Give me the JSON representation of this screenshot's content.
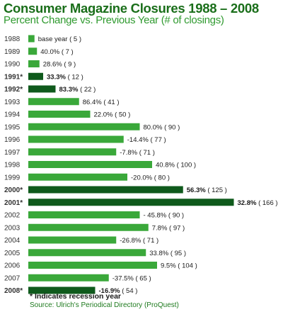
{
  "chart_data": {
    "type": "bar",
    "orientation": "horizontal",
    "title": "Consumer Magazine Closures 1988 – 2008",
    "subtitle": "Percent Change vs. Previous Year (# of closings)",
    "categories": [
      "1988",
      "1989",
      "1990",
      "1991*",
      "1992*",
      "1993",
      "1994",
      "1995",
      "1996",
      "1997",
      "1998",
      "1999",
      "2000*",
      "2001*",
      "2002",
      "2003",
      "2004",
      "2005",
      "2006",
      "2007",
      "2008*"
    ],
    "values": [
      5,
      7,
      9,
      12,
      22,
      41,
      50,
      90,
      77,
      71,
      100,
      80,
      125,
      166,
      90,
      97,
      71,
      95,
      104,
      65,
      54
    ],
    "pct_labels": [
      "base year",
      "40.0%",
      "28.6%",
      "33.3%",
      "83.3%",
      "86.4%",
      "22.0%",
      "80.0%",
      "-14.4%",
      "-7.8%",
      "40.8%",
      "-20.0%",
      "56.3%",
      "32.8%",
      "- 45.8%",
      "7.8%",
      "-26.8%",
      "33.8%",
      "9.5%",
      "-37.5%",
      "-16.9%"
    ],
    "count_labels": [
      "( 5 )",
      "( 7 )",
      "( 9 )",
      "( 12 )",
      "( 22 )",
      "( 41 )",
      "( 50 )",
      "( 90 )",
      "( 77 )",
      "( 71 )",
      "( 100 )",
      "( 80 )",
      "( 125 )",
      "( 166 )",
      "( 90 )",
      "( 97 )",
      "( 71 )",
      "( 95 )",
      "( 104 )",
      "( 65 )",
      "( 54 )"
    ],
    "recession": [
      false,
      false,
      false,
      true,
      true,
      false,
      false,
      false,
      false,
      false,
      false,
      false,
      true,
      true,
      false,
      false,
      false,
      false,
      false,
      false,
      true
    ],
    "grid": false,
    "legend": "none"
  },
  "colors": {
    "normal_bar": "#3aa83a",
    "recession_bar": "#0f5a1c",
    "title": "#1a6e1a",
    "subtitle": "#2f9a2f",
    "label_text": "#333333"
  },
  "footnote": "* Indicates recession year",
  "source": "Source: Ulrich's Periodical Directory (ProQuest)"
}
